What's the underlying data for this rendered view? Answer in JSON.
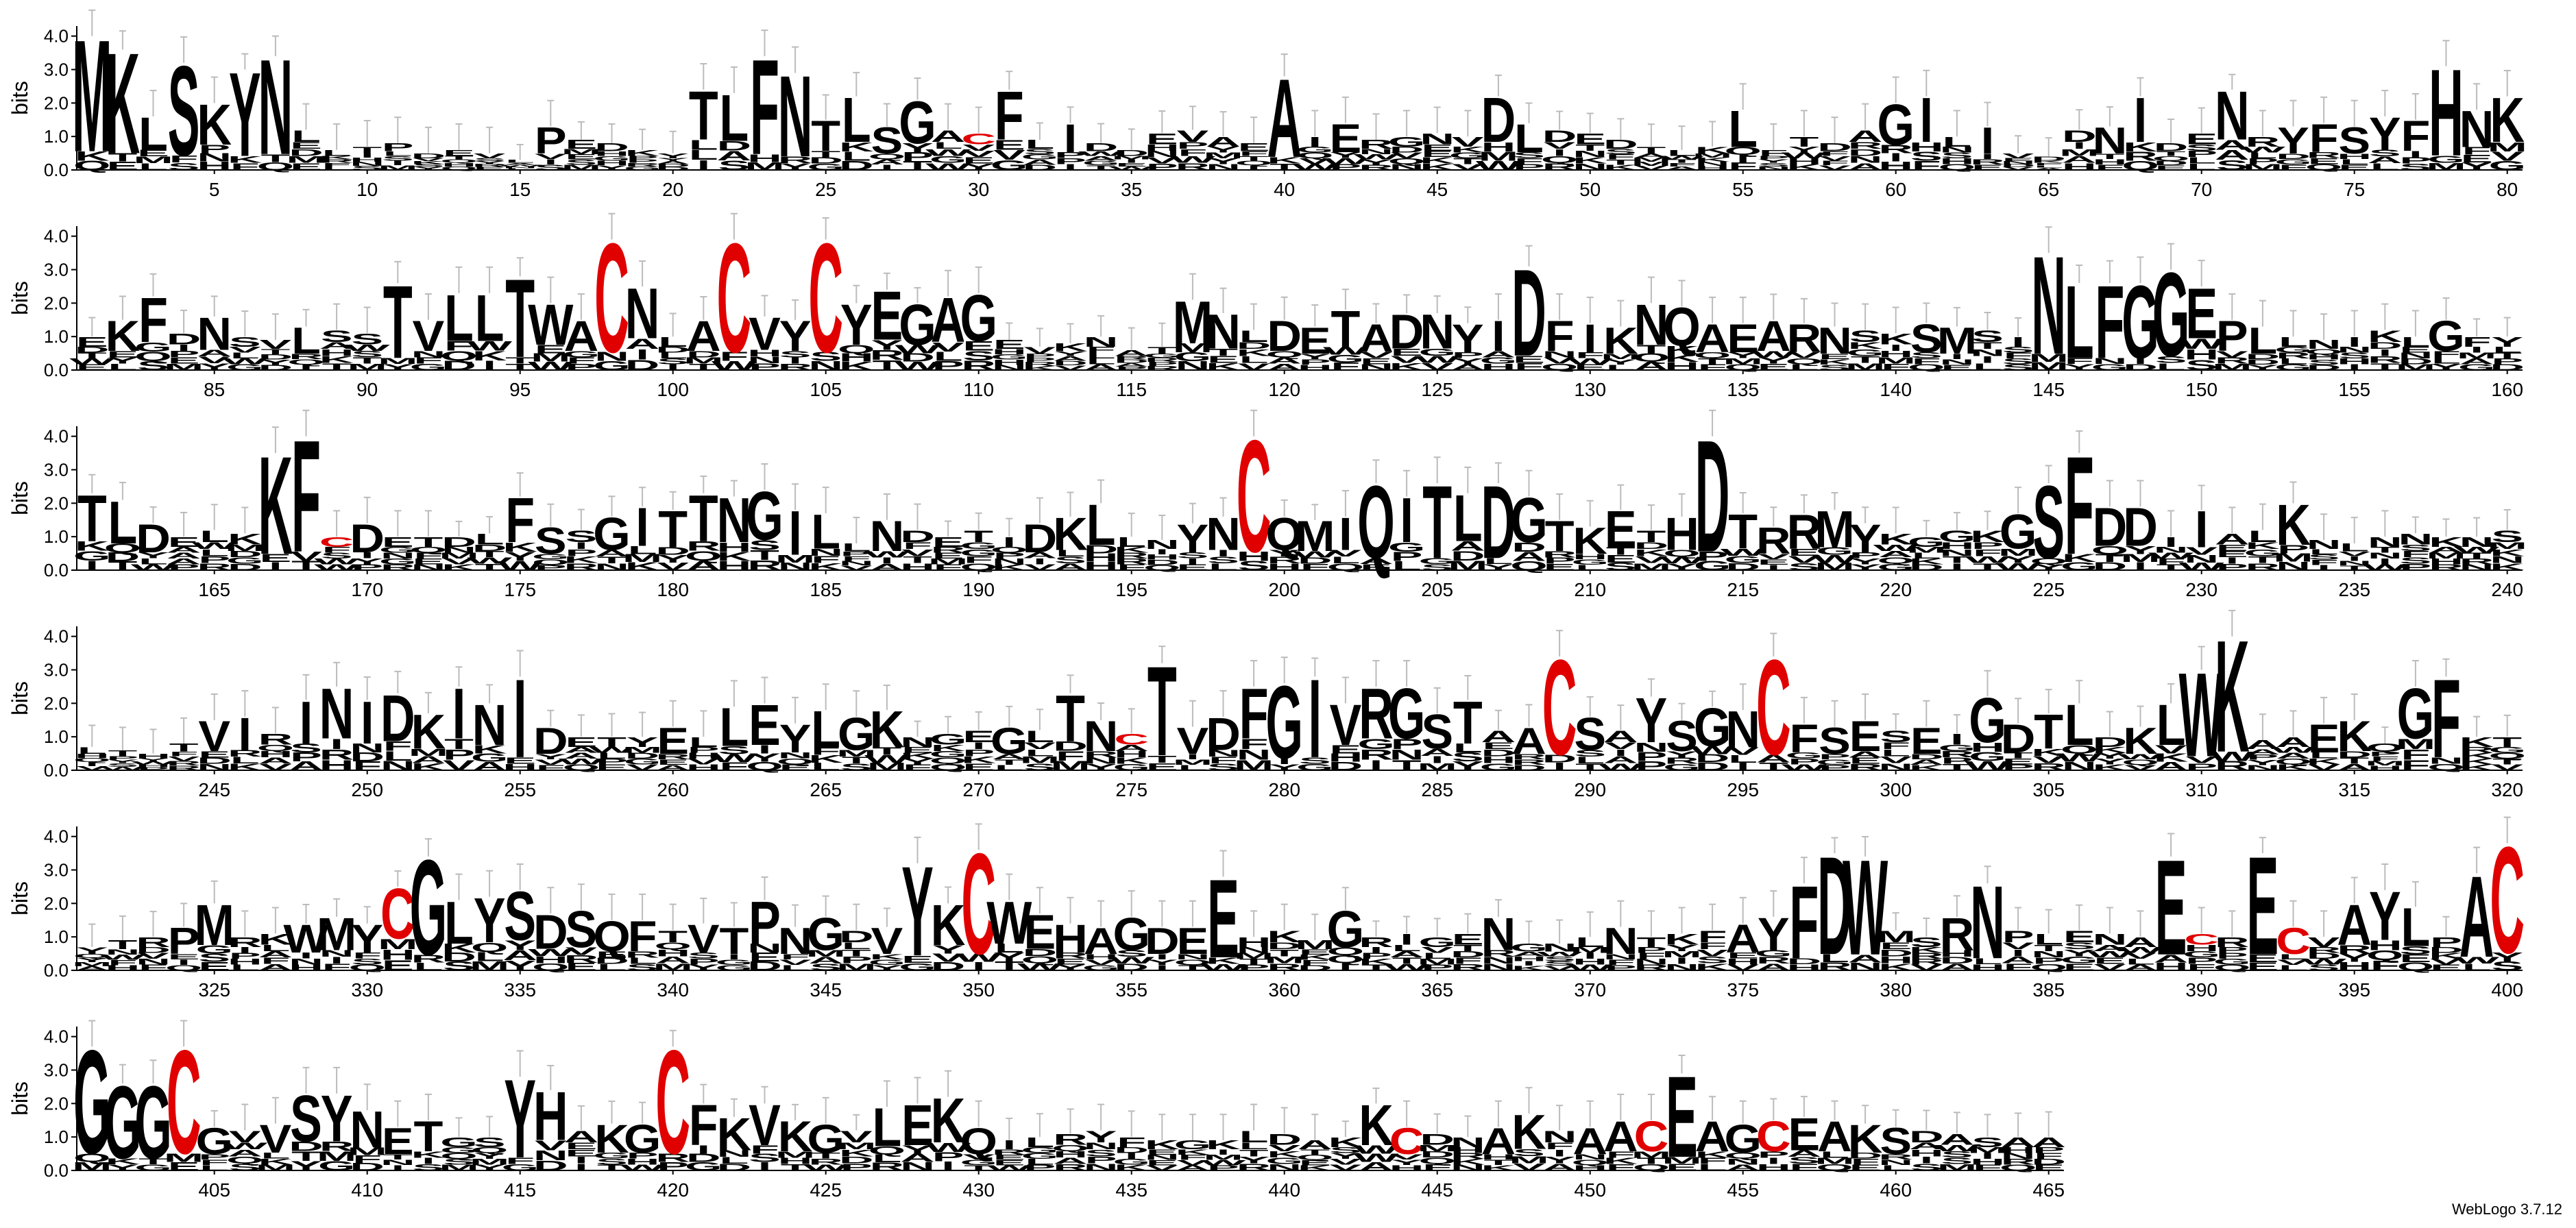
{
  "chart_data": {
    "type": "sequence_logo",
    "ylabel": "bits",
    "ylim": [
      0,
      4.3
    ],
    "yticks": [
      "0.0",
      "1.0",
      "2.0",
      "3.0",
      "4.0"
    ],
    "xtick_step": 5,
    "rows": [
      {
        "start": 1,
        "end": 80
      },
      {
        "start": 81,
        "end": 160
      },
      {
        "start": 161,
        "end": 240
      },
      {
        "start": 241,
        "end": 320
      },
      {
        "start": 321,
        "end": 400
      },
      {
        "start": 401,
        "end": 465
      }
    ],
    "colors": {
      "default": "#000000",
      "cysteine": "#e00000",
      "errorbar": "#bbbbbb"
    },
    "sequence": "MKLSKYNLLTPDEVLPEDKYTLFNTLSGACFLIDDEVAEAIERGNVDLDEDTLKLFTDAGILIVDDNIDENRYFSYFHNKEKFDNSVLSSTVLLTWACNLACVYCYEGAGEVKNATMNLDETADNYIDFIKNQAEARNSKSMSINLFGGEPLLNIKLGFYTLDELKKFCDETDLFSSGITTNGILLNDETIDKLLNYNCQMIQITLDGTKETHDTRRMYKGGKGSFDDIIALKNLNNKNSLTHTVIRINIDKINIDETYELLEYLGKNGEGLTNCTVDFGIVRGSTAACSAYSGNCFSESEIGDTLDKLWKAAEKQGFKTYTRPMRKWMYCGLYSDSQFTVTPNGDVYKCWEHAGDEEHKMGRIGENGNLNTKFAYFDWMSRNPLENAECRECVAYLPACGGGCGVVSYNETGSYHAKGCFKVKGVLEKQILRYFKGKLDAKKCDNAKNAACEAGCEAKSDAS",
    "heights": {
      "1": 4.0,
      "2": 3.6,
      "3": 1.6,
      "4": 3.2,
      "5": 2.0,
      "6": 3.0,
      "7": 3.4,
      "8": 1.2,
      "9": 0.6,
      "10": 0.7,
      "11": 0.8,
      "12": 0.5,
      "13": 0.6,
      "14": 0.5,
      "15": 0.3,
      "16": 1.3,
      "17": 0.9,
      "18": 0.8,
      "19": 0.6,
      "20": 0.5,
      "21": 2.4,
      "22": 2.3,
      "23": 3.4,
      "24": 2.9,
      "25": 1.5,
      "26": 2.2,
      "27": 1.3,
      "28": 2.1,
      "29": 1.2,
      "30": 1.1,
      "31": 2.4,
      "32": 0.9,
      "33": 1.4,
      "34": 0.8,
      "35": 0.6,
      "36": 1.1,
      "37": 1.2,
      "38": 1.0,
      "39": 0.8,
      "40": 2.8,
      "41": 1.0,
      "42": 1.4,
      "43": 0.9,
      "44": 1.0,
      "45": 1.1,
      "46": 1.0,
      "47": 2.2,
      "48": 1.4,
      "49": 1.2,
      "50": 1.1,
      "51": 0.9,
      "52": 0.7,
      "53": 0.6,
      "54": 0.7,
      "55": 1.8,
      "56": 0.6,
      "57": 1.0,
      "58": 0.8,
      "59": 1.2,
      "60": 2.0,
      "61": 2.2,
      "62": 1.0,
      "63": 1.3,
      "64": 0.5,
      "65": 0.4,
      "66": 1.2,
      "67": 1.3,
      "68": 2.2,
      "69": 0.8,
      "70": 1.1,
      "71": 2.4,
      "72": 1.0,
      "73": 1.3,
      "74": 1.4,
      "75": 1.3,
      "76": 1.6,
      "77": 1.5,
      "78": 3.1,
      "79": 1.8,
      "80": 2.2,
      "81": 1.0,
      "82": 1.5,
      "83": 2.2,
      "84": 1.1,
      "85": 1.6,
      "86": 1.0,
      "87": 0.9,
      "88": 1.3,
      "89": 1.2,
      "90": 1.1,
      "91": 2.6,
      "92": 1.5,
      "93": 2.3,
      "94": 2.3,
      "95": 2.8,
      "96": 2.0,
      "97": 1.5,
      "98": 3.9,
      "99": 2.5,
      "100": 1.0,
      "101": 1.5,
      "102": 3.9,
      "103": 1.6,
      "104": 1.5,
      "105": 3.9,
      "106": 2.0,
      "107": 2.4,
      "108": 2.0,
      "109": 2.2,
      "110": 2.3,
      "111": 0.9,
      "112": 0.7,
      "113": 0.8,
      "114": 1.0,
      "115": 0.6,
      "116": 0.7,
      "117": 2.1,
      "118": 1.7,
      "119": 1.2,
      "120": 1.5,
      "121": 1.3,
      "122": 1.8,
      "123": 1.4,
      "124": 1.7,
      "125": 1.7,
      "126": 1.4,
      "127": 1.5,
      "128": 3.1,
      "129": 1.5,
      "130": 1.4,
      "131": 1.3,
      "132": 2.0,
      "133": 1.9,
      "134": 1.4,
      "135": 1.4,
      "136": 1.5,
      "137": 1.4,
      "138": 1.3,
      "139": 1.2,
      "140": 1.1,
      "141": 1.4,
      "142": 1.3,
      "143": 1.2,
      "144": 1.0,
      "145": 3.5,
      "146": 2.6,
      "147": 2.6,
      "148": 2.6,
      "149": 3.0,
      "150": 2.5,
      "151": 1.5,
      "152": 1.3,
      "153": 1.0,
      "154": 0.9,
      "155": 1.0,
      "156": 1.2,
      "157": 1.0,
      "158": 1.5,
      "159": 1.0,
      "160": 1.0,
      "161": 2.3,
      "162": 2.1,
      "163": 1.4,
      "164": 1.0,
      "165": 1.2,
      "166": 1.1,
      "167": 3.5,
      "168": 4.0,
      "169": 1.0,
      "170": 1.4,
      "171": 1.0,
      "172": 1.0,
      "173": 1.0,
      "174": 1.1,
      "175": 2.2,
      "176": 1.3,
      "177": 1.2,
      "178": 1.6,
      "179": 1.9,
      "180": 1.8,
      "181": 2.3,
      "182": 2.2,
      "183": 2.4,
      "184": 1.8,
      "185": 1.7,
      "186": 0.8,
      "187": 1.5,
      "188": 1.2,
      "189": 1.0,
      "190": 1.2,
      "191": 1.0,
      "192": 1.4,
      "193": 1.6,
      "194": 2.0,
      "195": 1.0,
      "196": 0.9,
      "197": 1.4,
      "198": 1.6,
      "199": 4.0,
      "200": 1.6,
      "201": 1.5,
      "202": 1.6,
      "203": 2.6,
      "204": 2.2,
      "205": 2.6,
      "206": 2.3,
      "207": 2.6,
      "208": 2.2,
      "209": 1.5,
      "210": 1.3,
      "211": 1.8,
      "212": 1.2,
      "213": 1.6,
      "214": 4.0,
      "215": 1.7,
      "216": 1.3,
      "217": 1.7,
      "218": 1.8,
      "219": 1.4,
      "220": 1.1,
      "221": 1.0,
      "222": 1.2,
      "223": 1.2,
      "224": 1.7,
      "225": 2.6,
      "226": 3.5,
      "227": 1.9,
      "228": 1.9,
      "229": 1.0,
      "230": 1.8,
      "231": 1.1,
      "232": 1.2,
      "233": 2.0,
      "234": 0.9,
      "235": 0.8,
      "236": 1.0,
      "237": 1.1,
      "238": 1.0,
      "239": 1.0,
      "240": 1.2,
      "241": 0.7,
      "242": 0.6,
      "243": 0.5,
      "244": 0.8,
      "245": 1.5,
      "246": 1.6,
      "247": 1.1,
      "248": 2.1,
      "249": 2.5,
      "250": 2.1,
      "251": 2.3,
      "252": 1.7,
      "253": 2.5,
      "254": 2.0,
      "255": 2.8,
      "256": 1.3,
      "257": 1.0,
      "258": 1.0,
      "259": 1.0,
      "260": 1.3,
      "261": 1.0,
      "262": 1.9,
      "263": 2.0,
      "264": 1.4,
      "265": 1.8,
      "266": 1.6,
      "267": 1.8,
      "268": 1.0,
      "269": 1.1,
      "270": 1.2,
      "271": 1.3,
      "272": 1.2,
      "273": 2.3,
      "274": 1.5,
      "275": 1.1,
      "276": 3.2,
      "277": 1.3,
      "278": 1.6,
      "279": 2.5,
      "280": 2.6,
      "281": 2.8,
      "282": 2.0,
      "283": 2.5,
      "284": 2.5,
      "285": 1.7,
      "286": 2.1,
      "287": 1.2,
      "288": 1.3,
      "289": 3.4,
      "290": 1.6,
      "291": 1.2,
      "292": 2.2,
      "293": 1.5,
      "294": 1.9,
      "295": 1.8,
      "296": 3.4,
      "297": 1.4,
      "298": 1.3,
      "299": 1.5,
      "300": 1.2,
      "301": 1.3,
      "302": 1.1,
      "303": 2.2,
      "304": 1.4,
      "305": 1.7,
      "306": 2.0,
      "307": 1.0,
      "308": 1.3,
      "309": 2.0,
      "310": 3.0,
      "311": 4.0,
      "312": 0.9,
      "313": 1.0,
      "314": 1.4,
      "315": 1.5,
      "316": 0.8,
      "317": 2.5,
      "318": 2.8,
      "319": 1.0,
      "320": 1.0,
      "321": 0.7,
      "322": 0.9,
      "323": 1.0,
      "324": 1.3,
      "325": 2.0,
      "326": 1.0,
      "327": 1.1,
      "328": 1.4,
      "329": 1.6,
      "330": 1.4,
      "331": 2.5,
      "332": 3.4,
      "333": 2.1,
      "334": 2.2,
      "335": 2.4,
      "336": 1.7,
      "337": 1.8,
      "338": 1.5,
      "339": 1.5,
      "340": 1.2,
      "341": 1.4,
      "342": 1.3,
      "343": 2.1,
      "344": 1.3,
      "345": 1.6,
      "346": 1.2,
      "347": 1.3,
      "348": 3.2,
      "349": 2.0,
      "350": 3.6,
      "351": 2.1,
      "352": 1.7,
      "353": 1.4,
      "354": 1.3,
      "355": 1.6,
      "356": 1.3,
      "357": 1.3,
      "358": 2.8,
      "359": 1.0,
      "360": 1.2,
      "361": 0.9,
      "362": 1.8,
      "363": 1.0,
      "364": 1.1,
      "365": 1.0,
      "366": 1.1,
      "367": 1.6,
      "368": 0.8,
      "369": 0.8,
      "370": 1.0,
      "371": 1.3,
      "372": 1.0,
      "373": 1.1,
      "374": 1.2,
      "375": 1.4,
      "376": 1.6,
      "377": 2.6,
      "378": 3.5,
      "379": 3.4,
      "380": 1.2,
      "381": 1.0,
      "382": 1.6,
      "383": 2.6,
      "384": 1.2,
      "385": 1.1,
      "386": 1.2,
      "387": 1.1,
      "388": 1.0,
      "389": 3.4,
      "390": 1.1,
      "391": 1.0,
      "392": 3.5,
      "393": 1.3,
      "394": 1.0,
      "395": 2.0,
      "396": 2.4,
      "397": 1.9,
      "398": 1.0,
      "399": 2.9,
      "400": 3.8,
      "401": 3.7,
      "402": 2.6,
      "403": 2.6,
      "404": 3.7,
      "405": 1.3,
      "406": 1.2,
      "407": 1.4,
      "408": 2.3,
      "409": 2.3,
      "410": 1.8,
      "411": 1.3,
      "412": 1.5,
      "413": 1.0,
      "414": 1.0,
      "415": 2.8,
      "416": 2.4,
      "417": 1.2,
      "418": 1.4,
      "419": 1.4,
      "420": 3.7,
      "421": 2.0,
      "422": 1.6,
      "423": 2.0,
      "424": 1.5,
      "425": 1.4,
      "426": 1.2,
      "427": 1.9,
      "428": 2.0,
      "429": 2.2,
      "430": 1.3,
      "431": 0.9,
      "432": 1.0,
      "433": 1.1,
      "434": 1.2,
      "435": 1.0,
      "436": 0.9,
      "437": 0.9,
      "438": 0.9,
      "439": 1.2,
      "440": 1.1,
      "441": 0.9,
      "442": 1.0,
      "443": 2.0,
      "444": 1.3,
      "445": 1.1,
      "446": 1.0,
      "447": 1.3,
      "448": 1.7,
      "449": 1.2,
      "450": 1.3,
      "451": 1.5,
      "452": 1.5,
      "453": 2.9,
      "454": 1.5,
      "455": 1.4,
      "456": 1.5,
      "457": 1.6,
      "458": 1.5,
      "459": 1.4,
      "460": 1.3,
      "461": 1.2,
      "462": 1.1,
      "463": 1.0,
      "464": 1.0,
      "465": 1.0
    }
  },
  "footer": {
    "credit": "WebLogo 3.7.12"
  }
}
